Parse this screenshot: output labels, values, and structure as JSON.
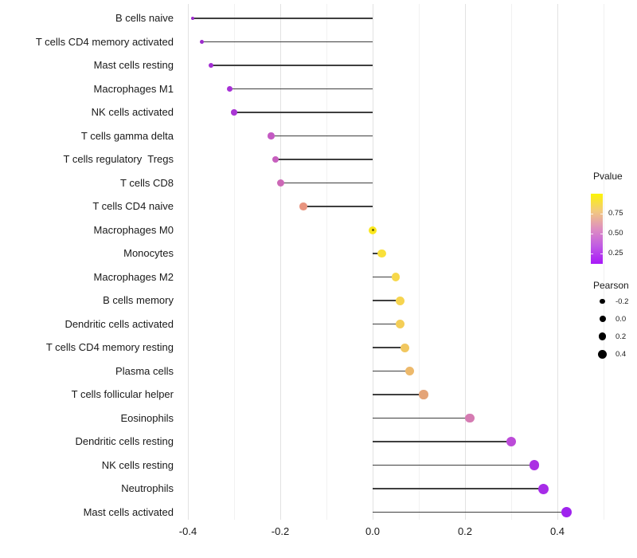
{
  "chart_data": {
    "type": "lollipop",
    "orientation": "horizontal",
    "title": "",
    "xlabel": "",
    "ylabel": "",
    "x_axis": {
      "range": [
        -0.47,
        0.52
      ],
      "major_ticks": [
        -0.4,
        -0.2,
        0.0,
        0.2,
        0.4
      ],
      "major_tick_labels": [
        "-0.4",
        "-0.2",
        "0.0",
        "0.2",
        "0.4"
      ],
      "minor_ticks": [
        -0.3,
        -0.1,
        0.1,
        0.3,
        0.5
      ],
      "grid": true
    },
    "rows": [
      {
        "label": "B cells naive",
        "pearson": -0.39,
        "dot_color": "#9A2BC9",
        "dot_size": 4.5
      },
      {
        "label": "T cells CD4 memory activated",
        "pearson": -0.37,
        "dot_color": "#9D2CCD",
        "dot_size": 5
      },
      {
        "label": "Mast cells resting",
        "pearson": -0.35,
        "dot_color": "#A22DD2",
        "dot_size": 6
      },
      {
        "label": "Macrophages M1",
        "pearson": -0.31,
        "dot_color": "#A731D6",
        "dot_size": 7
      },
      {
        "label": "NK cells activated",
        "pearson": -0.3,
        "dot_color": "#A935D4",
        "dot_size": 7.5
      },
      {
        "label": "T cells gamma delta",
        "pearson": -0.22,
        "dot_color": "#C45AC3",
        "dot_size": 8.5
      },
      {
        "label": "T cells regulatory  Tregs",
        "pearson": -0.21,
        "dot_color": "#C75FBE",
        "dot_size": 8.5
      },
      {
        "label": "T cells CD8",
        "pearson": -0.2,
        "dot_color": "#CC68B6",
        "dot_size": 9
      },
      {
        "label": "T cells CD4 naive",
        "pearson": -0.15,
        "dot_color": "#E8947F",
        "dot_size": 9.5
      },
      {
        "label": "Macrophages M0",
        "pearson": 0.0,
        "dot_color": "#FAE71E",
        "dot_size": 10,
        "stub": true
      },
      {
        "label": "Monocytes",
        "pearson": 0.02,
        "dot_color": "#F9E03A",
        "dot_size": 10.5
      },
      {
        "label": "Macrophages M2",
        "pearson": 0.05,
        "dot_color": "#F7D84A",
        "dot_size": 10.5
      },
      {
        "label": "B cells memory",
        "pearson": 0.06,
        "dot_color": "#F6D44F",
        "dot_size": 11
      },
      {
        "label": "Dendritic cells activated",
        "pearson": 0.06,
        "dot_color": "#F4CE57",
        "dot_size": 11
      },
      {
        "label": "T cells CD4 memory resting",
        "pearson": 0.07,
        "dot_color": "#F1C75F",
        "dot_size": 11
      },
      {
        "label": "Plasma cells",
        "pearson": 0.08,
        "dot_color": "#EDB96B",
        "dot_size": 11
      },
      {
        "label": "T cells follicular helper",
        "pearson": 0.11,
        "dot_color": "#E4A478",
        "dot_size": 11.5
      },
      {
        "label": "Eosinophils",
        "pearson": 0.21,
        "dot_color": "#D57BB2",
        "dot_size": 11.5
      },
      {
        "label": "Dendritic cells resting",
        "pearson": 0.3,
        "dot_color": "#BC4BD8",
        "dot_size": 12
      },
      {
        "label": "NK cells resting",
        "pearson": 0.35,
        "dot_color": "#AB31E3",
        "dot_size": 12.5
      },
      {
        "label": "Neutrophils",
        "pearson": 0.37,
        "dot_color": "#A72CE8",
        "dot_size": 13
      },
      {
        "label": "Mast cells activated",
        "pearson": 0.42,
        "dot_color": "#9F23EE",
        "dot_size": 13.5
      }
    ],
    "legend": {
      "pvalue": {
        "title": "Pvalue",
        "tick_labels": [
          "0.75",
          "0.50",
          "0.25"
        ],
        "gradient_top_to_bottom": [
          "#FCF403",
          "#F2C97F",
          "#DE8FC0",
          "#C05BE4",
          "#A818F8"
        ]
      },
      "pearson": {
        "title": "Pearson",
        "items": [
          {
            "label": "-0.2",
            "size": 6.5
          },
          {
            "label": "0.0",
            "size": 8
          },
          {
            "label": "0.2",
            "size": 9.5
          },
          {
            "label": "0.4",
            "size": 11
          }
        ],
        "dot_color": "#000000"
      }
    },
    "stem_color": "#3f3f3f",
    "background": "#ffffff"
  }
}
